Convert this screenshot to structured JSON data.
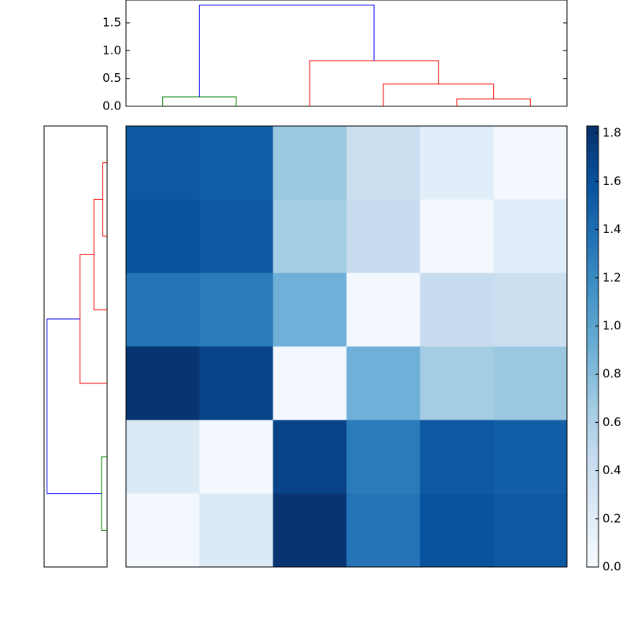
{
  "chart_data": [
    {
      "type": "dendrogram",
      "orientation": "top",
      "xlim": [
        0,
        60
      ],
      "ylim": [
        0,
        1.91
      ],
      "yticks": [
        {
          "value": 0,
          "label": "0.0"
        },
        0.5,
        {
          "value": 1,
          "label": "1.0"
        },
        1.5
      ],
      "links": [
        {
          "x": [
            5,
            5,
            15,
            15
          ],
          "y": [
            0,
            0.17,
            0.17,
            0
          ],
          "color": "#008000"
        },
        {
          "x": [
            45,
            45,
            55,
            55
          ],
          "y": [
            0,
            0.13,
            0.13,
            0
          ],
          "color": "#ff0000"
        },
        {
          "x": [
            35,
            35,
            50,
            50
          ],
          "y": [
            0,
            0.4,
            0.4,
            0.13
          ],
          "color": "#ff0000"
        },
        {
          "x": [
            25,
            25,
            42.5,
            42.5
          ],
          "y": [
            0,
            0.82,
            0.82,
            0.4
          ],
          "color": "#ff0000"
        },
        {
          "x": [
            10,
            10,
            33.75,
            33.75
          ],
          "y": [
            0.17,
            1.82,
            1.82,
            0.82
          ],
          "color": "#0000ff"
        }
      ]
    },
    {
      "type": "dendrogram",
      "orientation": "left",
      "xlim": [
        0,
        60
      ],
      "ylim": [
        0,
        1.91
      ],
      "links": [
        {
          "x": [
            5,
            5,
            15,
            15
          ],
          "y": [
            0,
            0.17,
            0.17,
            0
          ],
          "color": "#008000"
        },
        {
          "x": [
            45,
            45,
            55,
            55
          ],
          "y": [
            0,
            0.13,
            0.13,
            0
          ],
          "color": "#ff0000"
        },
        {
          "x": [
            35,
            35,
            50,
            50
          ],
          "y": [
            0,
            0.4,
            0.4,
            0.13
          ],
          "color": "#ff0000"
        },
        {
          "x": [
            25,
            25,
            42.5,
            42.5
          ],
          "y": [
            0,
            0.82,
            0.82,
            0.4
          ],
          "color": "#ff0000"
        },
        {
          "x": [
            10,
            10,
            33.75,
            33.75
          ],
          "y": [
            0.17,
            1.82,
            1.82,
            0.82
          ],
          "color": "#0000ff"
        }
      ]
    },
    {
      "type": "heatmap",
      "values": [
        [
          1.55,
          1.5,
          0.7,
          0.4,
          0.2,
          0.05
        ],
        [
          1.6,
          1.55,
          0.65,
          0.45,
          0.05,
          0.2
        ],
        [
          1.35,
          1.3,
          0.9,
          0.05,
          0.45,
          0.4
        ],
        [
          1.8,
          1.7,
          0.05,
          0.9,
          0.65,
          0.7
        ],
        [
          0.25,
          0.05,
          1.7,
          1.3,
          1.55,
          1.5
        ],
        [
          0.05,
          0.25,
          1.8,
          1.35,
          1.6,
          1.55
        ]
      ],
      "clim": [
        0,
        1.83
      ],
      "colormap": [
        "#f7fbff",
        "#deebf7",
        "#c6dbef",
        "#9ecae1",
        "#6baed6",
        "#4292c6",
        "#2171b5",
        "#08519c",
        "#08306b"
      ],
      "cticks": [
        {
          "value": 0,
          "label": "0.0"
        },
        0.2,
        0.4,
        0.6,
        0.8,
        {
          "value": 1,
          "label": "1.0"
        },
        1.2,
        1.4,
        1.6,
        1.8
      ]
    }
  ]
}
